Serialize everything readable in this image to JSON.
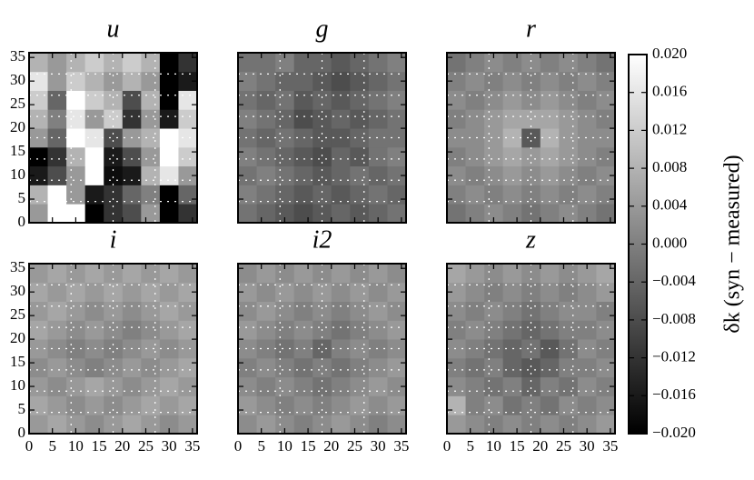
{
  "chart_data": [
    {
      "type": "heatmap",
      "title": "u",
      "xlim": [
        0,
        36
      ],
      "ylim": [
        0,
        36
      ],
      "xticks": [
        0,
        5,
        10,
        15,
        20,
        25,
        30,
        35
      ],
      "yticks": [
        0,
        5,
        10,
        15,
        20,
        25,
        30,
        35
      ],
      "x_edges": [
        0,
        4,
        8,
        12,
        16,
        20,
        24,
        28,
        32,
        36
      ],
      "y_edges": [
        0,
        4,
        8,
        12,
        16,
        20,
        24,
        28,
        32,
        36
      ],
      "vlim": [
        -0.02,
        0.02
      ],
      "z": [
        [
          0.004,
          0.02,
          0.02,
          -0.02,
          -0.012,
          -0.008,
          0.004,
          -0.02,
          -0.012
        ],
        [
          0.008,
          0.02,
          0.004,
          -0.016,
          -0.012,
          -0.004,
          0.0,
          -0.02,
          -0.004
        ],
        [
          -0.016,
          -0.008,
          0.004,
          0.02,
          -0.018,
          -0.016,
          0.008,
          0.016,
          0.004
        ],
        [
          -0.02,
          -0.012,
          0.008,
          0.02,
          -0.016,
          -0.008,
          0.004,
          0.02,
          0.012
        ],
        [
          0.004,
          -0.004,
          0.02,
          0.016,
          -0.008,
          0.004,
          0.008,
          0.02,
          0.016
        ],
        [
          0.008,
          0.0,
          0.016,
          0.004,
          0.012,
          -0.012,
          0.004,
          -0.016,
          0.012
        ],
        [
          0.012,
          -0.004,
          0.02,
          0.012,
          0.008,
          -0.008,
          0.008,
          -0.02,
          0.016
        ],
        [
          0.016,
          0.004,
          0.012,
          0.008,
          0.004,
          0.008,
          0.004,
          -0.02,
          -0.016
        ],
        [
          0.008,
          0.004,
          0.008,
          0.012,
          0.008,
          0.012,
          0.008,
          -0.02,
          -0.012
        ]
      ]
    },
    {
      "type": "heatmap",
      "title": "g",
      "xlim": [
        0,
        36
      ],
      "ylim": [
        0,
        36
      ],
      "xticks": [
        0,
        5,
        10,
        15,
        20,
        25,
        30,
        35
      ],
      "yticks": [
        0,
        5,
        10,
        15,
        20,
        25,
        30,
        35
      ],
      "x_edges": [
        0,
        4,
        8,
        12,
        16,
        20,
        24,
        28,
        32,
        36
      ],
      "y_edges": [
        0,
        4,
        8,
        12,
        16,
        20,
        24,
        28,
        32,
        36
      ],
      "vlim": [
        -0.02,
        0.02
      ],
      "z": [
        [
          -0.002,
          -0.004,
          -0.006,
          -0.008,
          -0.006,
          -0.004,
          -0.006,
          -0.004,
          -0.002
        ],
        [
          0.0,
          -0.002,
          -0.004,
          -0.006,
          -0.004,
          -0.006,
          -0.004,
          -0.002,
          -0.004
        ],
        [
          -0.002,
          0.0,
          -0.002,
          -0.004,
          -0.006,
          -0.004,
          -0.002,
          -0.004,
          -0.002
        ],
        [
          0.0,
          -0.002,
          -0.004,
          -0.006,
          -0.008,
          -0.004,
          -0.006,
          -0.002,
          0.0
        ],
        [
          -0.002,
          -0.004,
          -0.002,
          -0.004,
          -0.006,
          -0.006,
          -0.004,
          -0.002,
          -0.002
        ],
        [
          0.0,
          -0.002,
          -0.004,
          -0.008,
          -0.006,
          -0.004,
          -0.006,
          -0.004,
          -0.002
        ],
        [
          -0.002,
          -0.004,
          -0.002,
          -0.006,
          -0.004,
          -0.006,
          -0.004,
          -0.002,
          0.0
        ],
        [
          0.0,
          -0.002,
          -0.004,
          -0.004,
          -0.006,
          -0.008,
          -0.006,
          -0.004,
          -0.002
        ],
        [
          -0.002,
          -0.002,
          0.0,
          -0.004,
          -0.004,
          -0.006,
          -0.004,
          -0.002,
          0.0
        ]
      ]
    },
    {
      "type": "heatmap",
      "title": "r",
      "xlim": [
        0,
        36
      ],
      "ylim": [
        0,
        36
      ],
      "xticks": [
        0,
        5,
        10,
        15,
        20,
        25,
        30,
        35
      ],
      "yticks": [
        0,
        5,
        10,
        15,
        20,
        25,
        30,
        35
      ],
      "x_edges": [
        0,
        4,
        8,
        12,
        16,
        20,
        24,
        28,
        32,
        36
      ],
      "y_edges": [
        0,
        4,
        8,
        12,
        16,
        20,
        24,
        28,
        32,
        36
      ],
      "vlim": [
        -0.02,
        0.02
      ],
      "z": [
        [
          -0.002,
          0.0,
          0.002,
          0.0,
          -0.002,
          0.0,
          0.002,
          0.0,
          -0.002
        ],
        [
          0.0,
          0.002,
          0.0,
          0.002,
          0.0,
          0.002,
          0.0,
          0.002,
          0.0
        ],
        [
          0.002,
          0.0,
          0.002,
          0.004,
          0.002,
          0.004,
          0.002,
          0.0,
          0.002
        ],
        [
          0.0,
          0.002,
          0.004,
          0.006,
          0.004,
          0.006,
          0.004,
          0.002,
          0.0
        ],
        [
          0.002,
          0.002,
          0.004,
          0.008,
          -0.006,
          0.008,
          0.004,
          0.002,
          0.002
        ],
        [
          0.0,
          0.002,
          0.004,
          0.006,
          0.006,
          0.006,
          0.004,
          0.002,
          0.0
        ],
        [
          0.002,
          0.0,
          0.002,
          0.004,
          0.002,
          0.004,
          0.002,
          0.0,
          0.002
        ],
        [
          0.0,
          0.002,
          0.0,
          0.002,
          0.0,
          0.002,
          0.0,
          0.002,
          0.0
        ],
        [
          -0.002,
          0.0,
          0.002,
          0.0,
          0.002,
          0.0,
          0.002,
          0.0,
          -0.002
        ]
      ]
    },
    {
      "type": "heatmap",
      "title": "i",
      "xlim": [
        0,
        36
      ],
      "ylim": [
        0,
        36
      ],
      "xticks": [
        0,
        5,
        10,
        15,
        20,
        25,
        30,
        35
      ],
      "yticks": [
        0,
        5,
        10,
        15,
        20,
        25,
        30,
        35
      ],
      "x_edges": [
        0,
        4,
        8,
        12,
        16,
        20,
        24,
        28,
        32,
        36
      ],
      "y_edges": [
        0,
        4,
        8,
        12,
        16,
        20,
        24,
        28,
        32,
        36
      ],
      "vlim": [
        -0.02,
        0.02
      ],
      "z": [
        [
          0.004,
          0.006,
          0.004,
          0.002,
          0.004,
          0.006,
          0.004,
          0.002,
          0.004
        ],
        [
          0.006,
          0.004,
          0.002,
          0.004,
          0.002,
          0.004,
          0.006,
          0.004,
          0.006
        ],
        [
          0.004,
          0.002,
          0.004,
          0.006,
          0.004,
          0.002,
          0.004,
          0.006,
          0.004
        ],
        [
          0.002,
          0.004,
          0.002,
          0.0,
          0.002,
          0.004,
          0.002,
          0.004,
          0.006
        ],
        [
          0.004,
          0.002,
          0.0,
          0.002,
          0.0,
          0.002,
          0.004,
          0.002,
          0.004
        ],
        [
          0.006,
          0.004,
          0.002,
          0.004,
          0.002,
          0.0,
          0.002,
          0.004,
          0.006
        ],
        [
          0.004,
          0.006,
          0.004,
          0.002,
          0.004,
          0.002,
          0.004,
          0.006,
          0.004
        ],
        [
          0.006,
          0.004,
          0.006,
          0.004,
          0.006,
          0.004,
          0.006,
          0.004,
          0.006
        ],
        [
          0.004,
          0.006,
          0.004,
          0.006,
          0.004,
          0.006,
          0.004,
          0.006,
          0.004
        ]
      ]
    },
    {
      "type": "heatmap",
      "title": "i2",
      "xlim": [
        0,
        36
      ],
      "ylim": [
        0,
        36
      ],
      "xticks": [
        0,
        5,
        10,
        15,
        20,
        25,
        30,
        35
      ],
      "yticks": [
        0,
        5,
        10,
        15,
        20,
        25,
        30,
        35
      ],
      "x_edges": [
        0,
        4,
        8,
        12,
        16,
        20,
        24,
        28,
        32,
        36
      ],
      "y_edges": [
        0,
        4,
        8,
        12,
        16,
        20,
        24,
        28,
        32,
        36
      ],
      "vlim": [
        -0.02,
        0.02
      ],
      "z": [
        [
          0.002,
          0.004,
          0.002,
          0.0,
          0.002,
          0.004,
          0.002,
          0.0,
          0.002
        ],
        [
          0.004,
          0.002,
          0.0,
          0.002,
          0.0,
          0.002,
          0.004,
          0.002,
          0.004
        ],
        [
          0.002,
          0.0,
          0.002,
          0.0,
          -0.002,
          0.0,
          0.002,
          0.004,
          0.002
        ],
        [
          0.0,
          0.002,
          0.0,
          -0.002,
          0.0,
          -0.002,
          0.0,
          0.002,
          0.004
        ],
        [
          0.002,
          0.0,
          -0.002,
          0.0,
          -0.004,
          0.0,
          0.002,
          0.0,
          0.002
        ],
        [
          0.004,
          0.002,
          0.0,
          0.002,
          0.0,
          -0.002,
          0.0,
          0.002,
          0.004
        ],
        [
          0.002,
          0.004,
          0.002,
          0.0,
          0.002,
          0.0,
          0.002,
          0.004,
          0.002
        ],
        [
          0.004,
          0.002,
          0.004,
          0.002,
          0.004,
          0.002,
          0.004,
          0.002,
          0.004
        ],
        [
          0.002,
          0.004,
          0.002,
          0.004,
          0.002,
          0.004,
          0.002,
          0.004,
          0.002
        ]
      ]
    },
    {
      "type": "heatmap",
      "title": "z",
      "xlim": [
        0,
        36
      ],
      "ylim": [
        0,
        36
      ],
      "xticks": [
        0,
        5,
        10,
        15,
        20,
        25,
        30,
        35
      ],
      "yticks": [
        0,
        5,
        10,
        15,
        20,
        25,
        30,
        35
      ],
      "x_edges": [
        0,
        4,
        8,
        12,
        16,
        20,
        24,
        28,
        32,
        36
      ],
      "y_edges": [
        0,
        4,
        8,
        12,
        16,
        20,
        24,
        28,
        32,
        36
      ],
      "vlim": [
        -0.02,
        0.02
      ],
      "z": [
        [
          0.004,
          0.002,
          0.0,
          0.002,
          0.0,
          0.002,
          0.0,
          0.002,
          0.004
        ],
        [
          0.008,
          0.0,
          0.002,
          -0.002,
          0.0,
          -0.002,
          0.002,
          0.0,
          0.002
        ],
        [
          0.002,
          0.0,
          -0.002,
          0.0,
          -0.004,
          0.0,
          -0.002,
          0.002,
          0.0
        ],
        [
          0.0,
          -0.002,
          0.0,
          -0.004,
          -0.006,
          -0.004,
          0.0,
          0.0,
          0.002
        ],
        [
          0.002,
          0.0,
          -0.002,
          -0.004,
          -0.002,
          -0.006,
          -0.002,
          0.002,
          0.0
        ],
        [
          0.0,
          0.002,
          0.0,
          -0.002,
          -0.004,
          -0.002,
          0.0,
          0.0,
          0.002
        ],
        [
          0.002,
          0.0,
          0.002,
          0.0,
          -0.002,
          0.0,
          0.002,
          0.002,
          0.0
        ],
        [
          0.004,
          0.002,
          0.0,
          0.002,
          0.0,
          0.002,
          0.0,
          0.002,
          0.004
        ],
        [
          0.006,
          0.004,
          0.002,
          0.004,
          0.002,
          0.004,
          0.002,
          0.004,
          0.006
        ]
      ]
    },
    {
      "type": "colorbar",
      "label": "δk    (syn − measured)",
      "vlim": [
        -0.02,
        0.02
      ],
      "ticks": [
        {
          "value": -0.02,
          "label": "−0.020"
        },
        {
          "value": -0.016,
          "label": "−0.016"
        },
        {
          "value": -0.012,
          "label": "−0.012"
        },
        {
          "value": -0.008,
          "label": "−0.008"
        },
        {
          "value": -0.004,
          "label": "−0.004"
        },
        {
          "value": 0,
          "label": "0.000"
        },
        {
          "value": 0.004,
          "label": "0.004"
        },
        {
          "value": 0.008,
          "label": "0.008"
        },
        {
          "value": 0.012,
          "label": "0.012"
        },
        {
          "value": 0.016,
          "label": "0.016"
        },
        {
          "value": 0.02,
          "label": "0.020"
        }
      ]
    }
  ]
}
